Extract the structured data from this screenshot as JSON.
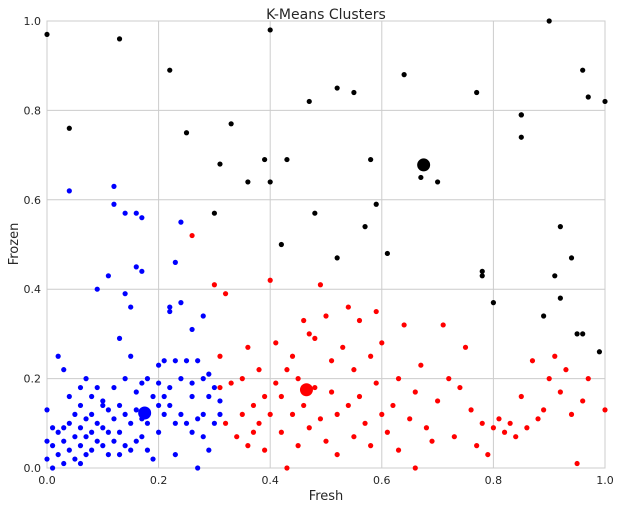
{
  "chart_data": {
    "type": "scatter",
    "title": "K-Means Clusters",
    "xlabel": "Fresh",
    "ylabel": "Frozen",
    "xlim": [
      0,
      1
    ],
    "ylim": [
      0,
      1
    ],
    "xticks": [
      "0.0",
      "0.2",
      "0.4",
      "0.6",
      "0.8",
      "1.0"
    ],
    "yticks": [
      "0.0",
      "0.2",
      "0.4",
      "0.6",
      "0.8",
      "1.0"
    ],
    "grid": true,
    "legend": "none",
    "series": [
      {
        "color": "#0000ff",
        "points": [
          [
            0.0,
            0.13
          ],
          [
            0.0,
            0.06
          ],
          [
            0.0,
            0.02
          ],
          [
            0.01,
            0.09
          ],
          [
            0.01,
            0.05
          ],
          [
            0.01,
            0.0
          ],
          [
            0.02,
            0.25
          ],
          [
            0.02,
            0.08
          ],
          [
            0.02,
            0.03
          ],
          [
            0.03,
            0.22
          ],
          [
            0.03,
            0.09
          ],
          [
            0.03,
            0.06
          ],
          [
            0.03,
            0.01
          ],
          [
            0.04,
            0.62
          ],
          [
            0.04,
            0.16
          ],
          [
            0.04,
            0.1
          ],
          [
            0.04,
            0.04
          ],
          [
            0.05,
            0.12
          ],
          [
            0.05,
            0.07
          ],
          [
            0.05,
            0.02
          ],
          [
            0.06,
            0.18
          ],
          [
            0.06,
            0.14
          ],
          [
            0.06,
            0.09
          ],
          [
            0.06,
            0.05
          ],
          [
            0.06,
            0.01
          ],
          [
            0.07,
            0.2
          ],
          [
            0.07,
            0.11
          ],
          [
            0.07,
            0.07
          ],
          [
            0.07,
            0.03
          ],
          [
            0.08,
            0.16
          ],
          [
            0.08,
            0.12
          ],
          [
            0.08,
            0.08
          ],
          [
            0.08,
            0.04
          ],
          [
            0.09,
            0.4
          ],
          [
            0.09,
            0.18
          ],
          [
            0.09,
            0.1
          ],
          [
            0.09,
            0.06
          ],
          [
            0.1,
            0.15
          ],
          [
            0.1,
            0.14
          ],
          [
            0.1,
            0.09
          ],
          [
            0.1,
            0.05
          ],
          [
            0.11,
            0.43
          ],
          [
            0.11,
            0.13
          ],
          [
            0.11,
            0.08
          ],
          [
            0.11,
            0.03
          ],
          [
            0.12,
            0.63
          ],
          [
            0.12,
            0.59
          ],
          [
            0.12,
            0.18
          ],
          [
            0.12,
            0.11
          ],
          [
            0.12,
            0.06
          ],
          [
            0.13,
            0.29
          ],
          [
            0.13,
            0.14
          ],
          [
            0.13,
            0.08
          ],
          [
            0.13,
            0.03
          ],
          [
            0.14,
            0.57
          ],
          [
            0.14,
            0.39
          ],
          [
            0.14,
            0.2
          ],
          [
            0.14,
            0.12
          ],
          [
            0.14,
            0.05
          ],
          [
            0.15,
            0.36
          ],
          [
            0.15,
            0.25
          ],
          [
            0.15,
            0.1
          ],
          [
            0.15,
            0.04
          ],
          [
            0.16,
            0.57
          ],
          [
            0.16,
            0.45
          ],
          [
            0.16,
            0.17
          ],
          [
            0.16,
            0.13
          ],
          [
            0.16,
            0.06
          ],
          [
            0.17,
            0.56
          ],
          [
            0.17,
            0.44
          ],
          [
            0.17,
            0.19
          ],
          [
            0.17,
            0.11
          ],
          [
            0.17,
            0.07
          ],
          [
            0.18,
            0.2
          ],
          [
            0.18,
            0.1
          ],
          [
            0.18,
            0.04
          ],
          [
            0.19,
            0.16
          ],
          [
            0.19,
            0.02
          ],
          [
            0.2,
            0.23
          ],
          [
            0.2,
            0.19
          ],
          [
            0.2,
            0.14
          ],
          [
            0.2,
            0.08
          ],
          [
            0.21,
            0.24
          ],
          [
            0.21,
            0.16
          ],
          [
            0.21,
            0.12
          ],
          [
            0.22,
            0.36
          ],
          [
            0.22,
            0.35
          ],
          [
            0.22,
            0.18
          ],
          [
            0.22,
            0.14
          ],
          [
            0.23,
            0.46
          ],
          [
            0.23,
            0.24
          ],
          [
            0.23,
            0.1
          ],
          [
            0.23,
            0.03
          ],
          [
            0.24,
            0.55
          ],
          [
            0.24,
            0.37
          ],
          [
            0.24,
            0.2
          ],
          [
            0.24,
            0.12
          ],
          [
            0.25,
            0.24
          ],
          [
            0.25,
            0.1
          ],
          [
            0.26,
            0.31
          ],
          [
            0.26,
            0.19
          ],
          [
            0.26,
            0.16
          ],
          [
            0.26,
            0.08
          ],
          [
            0.27,
            0.24
          ],
          [
            0.27,
            0.11
          ],
          [
            0.27,
            0.0
          ],
          [
            0.28,
            0.34
          ],
          [
            0.28,
            0.2
          ],
          [
            0.28,
            0.12
          ],
          [
            0.28,
            0.07
          ],
          [
            0.29,
            0.21
          ],
          [
            0.29,
            0.16
          ],
          [
            0.29,
            0.04
          ],
          [
            0.3,
            0.18
          ],
          [
            0.3,
            0.1
          ],
          [
            0.31,
            0.15
          ],
          [
            0.31,
            0.12
          ]
        ]
      },
      {
        "color": "#ff0000",
        "points": [
          [
            0.26,
            0.52
          ],
          [
            0.3,
            0.41
          ],
          [
            0.31,
            0.25
          ],
          [
            0.31,
            0.18
          ],
          [
            0.32,
            0.39
          ],
          [
            0.32,
            0.1
          ],
          [
            0.33,
            0.19
          ],
          [
            0.34,
            0.07
          ],
          [
            0.35,
            0.12
          ],
          [
            0.35,
            0.2
          ],
          [
            0.36,
            0.05
          ],
          [
            0.36,
            0.27
          ],
          [
            0.37,
            0.14
          ],
          [
            0.37,
            0.08
          ],
          [
            0.38,
            0.22
          ],
          [
            0.38,
            0.1
          ],
          [
            0.39,
            0.16
          ],
          [
            0.39,
            0.04
          ],
          [
            0.4,
            0.42
          ],
          [
            0.4,
            0.12
          ],
          [
            0.41,
            0.19
          ],
          [
            0.41,
            0.28
          ],
          [
            0.42,
            0.08
          ],
          [
            0.42,
            0.16
          ],
          [
            0.43,
            0.22
          ],
          [
            0.43,
            0.0
          ],
          [
            0.44,
            0.25
          ],
          [
            0.44,
            0.12
          ],
          [
            0.45,
            0.05
          ],
          [
            0.45,
            0.2
          ],
          [
            0.46,
            0.33
          ],
          [
            0.46,
            0.14
          ],
          [
            0.47,
            0.3
          ],
          [
            0.47,
            0.09
          ],
          [
            0.48,
            0.29
          ],
          [
            0.48,
            0.18
          ],
          [
            0.49,
            0.41
          ],
          [
            0.49,
            0.11
          ],
          [
            0.5,
            0.34
          ],
          [
            0.5,
            0.06
          ],
          [
            0.51,
            0.24
          ],
          [
            0.51,
            0.17
          ],
          [
            0.52,
            0.12
          ],
          [
            0.52,
            0.03
          ],
          [
            0.53,
            0.27
          ],
          [
            0.54,
            0.14
          ],
          [
            0.54,
            0.36
          ],
          [
            0.55,
            0.22
          ],
          [
            0.55,
            0.07
          ],
          [
            0.56,
            0.33
          ],
          [
            0.56,
            0.16
          ],
          [
            0.57,
            0.1
          ],
          [
            0.58,
            0.25
          ],
          [
            0.58,
            0.05
          ],
          [
            0.59,
            0.19
          ],
          [
            0.59,
            0.35
          ],
          [
            0.6,
            0.12
          ],
          [
            0.6,
            0.28
          ],
          [
            0.61,
            0.08
          ],
          [
            0.62,
            0.14
          ],
          [
            0.63,
            0.2
          ],
          [
            0.63,
            0.04
          ],
          [
            0.64,
            0.32
          ],
          [
            0.65,
            0.11
          ],
          [
            0.66,
            0.17
          ],
          [
            0.66,
            0.0
          ],
          [
            0.67,
            0.23
          ],
          [
            0.68,
            0.09
          ],
          [
            0.69,
            0.06
          ],
          [
            0.7,
            0.15
          ],
          [
            0.71,
            0.32
          ],
          [
            0.72,
            0.2
          ],
          [
            0.73,
            0.07
          ],
          [
            0.74,
            0.18
          ],
          [
            0.75,
            0.27
          ],
          [
            0.76,
            0.13
          ],
          [
            0.77,
            0.05
          ],
          [
            0.78,
            0.1
          ],
          [
            0.79,
            0.03
          ],
          [
            0.8,
            0.09
          ],
          [
            0.81,
            0.11
          ],
          [
            0.82,
            0.08
          ],
          [
            0.83,
            0.1
          ],
          [
            0.84,
            0.07
          ],
          [
            0.85,
            0.16
          ],
          [
            0.86,
            0.09
          ],
          [
            0.87,
            0.24
          ],
          [
            0.88,
            0.11
          ],
          [
            0.89,
            0.13
          ],
          [
            0.9,
            0.2
          ],
          [
            0.91,
            0.25
          ],
          [
            0.92,
            0.17
          ],
          [
            0.93,
            0.22
          ],
          [
            0.94,
            0.12
          ],
          [
            0.95,
            0.01
          ],
          [
            0.96,
            0.15
          ],
          [
            0.97,
            0.2
          ],
          [
            1.0,
            0.13
          ]
        ]
      },
      {
        "color": "#000000",
        "points": [
          [
            0.0,
            0.97
          ],
          [
            0.04,
            0.76
          ],
          [
            0.13,
            0.96
          ],
          [
            0.22,
            0.89
          ],
          [
            0.25,
            0.75
          ],
          [
            0.33,
            0.77
          ],
          [
            0.3,
            0.57
          ],
          [
            0.31,
            0.68
          ],
          [
            0.36,
            0.64
          ],
          [
            0.39,
            0.69
          ],
          [
            0.4,
            0.98
          ],
          [
            0.4,
            0.64
          ],
          [
            0.42,
            0.5
          ],
          [
            0.43,
            0.69
          ],
          [
            0.47,
            0.82
          ],
          [
            0.48,
            0.57
          ],
          [
            0.52,
            0.85
          ],
          [
            0.52,
            0.47
          ],
          [
            0.55,
            0.84
          ],
          [
            0.57,
            0.54
          ],
          [
            0.58,
            0.69
          ],
          [
            0.59,
            0.59
          ],
          [
            0.61,
            0.48
          ],
          [
            0.64,
            0.88
          ],
          [
            0.67,
            0.65
          ],
          [
            0.7,
            0.64
          ],
          [
            0.77,
            0.84
          ],
          [
            0.78,
            0.44
          ],
          [
            0.78,
            0.43
          ],
          [
            0.8,
            0.37
          ],
          [
            0.85,
            0.79
          ],
          [
            0.85,
            0.79
          ],
          [
            0.85,
            0.74
          ],
          [
            0.89,
            0.34
          ],
          [
            0.9,
            1.0
          ],
          [
            0.91,
            0.43
          ],
          [
            0.92,
            0.38
          ],
          [
            0.92,
            0.54
          ],
          [
            0.94,
            0.47
          ],
          [
            0.95,
            0.3
          ],
          [
            0.96,
            0.89
          ],
          [
            0.96,
            0.3
          ],
          [
            0.97,
            0.83
          ],
          [
            0.99,
            0.26
          ],
          [
            1.0,
            0.82
          ]
        ]
      }
    ],
    "centroids": [
      {
        "color": "#0000ff",
        "x": 0.175,
        "y": 0.123
      },
      {
        "color": "#ff0000",
        "x": 0.465,
        "y": 0.175
      },
      {
        "color": "#000000",
        "x": 0.675,
        "y": 0.678
      }
    ]
  }
}
